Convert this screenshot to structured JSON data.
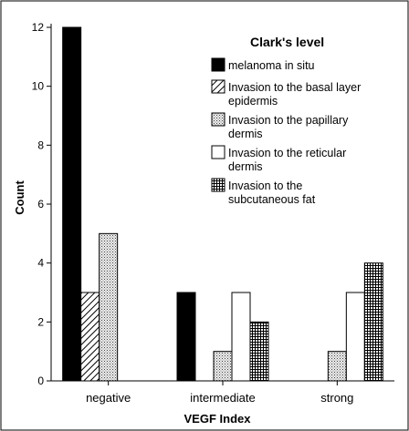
{
  "chart_data": {
    "type": "bar",
    "xlabel": "VEGF Index",
    "ylabel": "Count",
    "ylim": [
      0,
      12
    ],
    "yticks": [
      0,
      2,
      4,
      6,
      8,
      10,
      12
    ],
    "grid": false,
    "legend_placement": "top-right",
    "legend_title": "Clark's level",
    "categories": [
      "negative",
      "intermediate",
      "strong"
    ],
    "series": [
      {
        "name": "melanoma in situ",
        "values": [
          12,
          3,
          null
        ],
        "pattern": "solid-black"
      },
      {
        "name": "Invasion to the basal layer epidermis",
        "legend_lines": [
          "Invasion to the basal layer",
          "epidermis"
        ],
        "values": [
          3,
          null,
          null
        ],
        "pattern": "diagonal-hatch"
      },
      {
        "name": "Invasion to the papillary dermis",
        "legend_lines": [
          "Invasion to the papillary",
          "dermis"
        ],
        "values": [
          5,
          1,
          1
        ],
        "pattern": "dots"
      },
      {
        "name": "Invasion to the reticular dermis",
        "legend_lines": [
          "Invasion to the reticular",
          "dermis"
        ],
        "values": [
          null,
          3,
          3
        ],
        "pattern": "white"
      },
      {
        "name": "Invasion to the subcutaneous fat",
        "legend_lines": [
          "Invasion to the",
          "subcutaneous fat"
        ],
        "values": [
          null,
          2,
          4
        ],
        "pattern": "grid"
      }
    ]
  }
}
